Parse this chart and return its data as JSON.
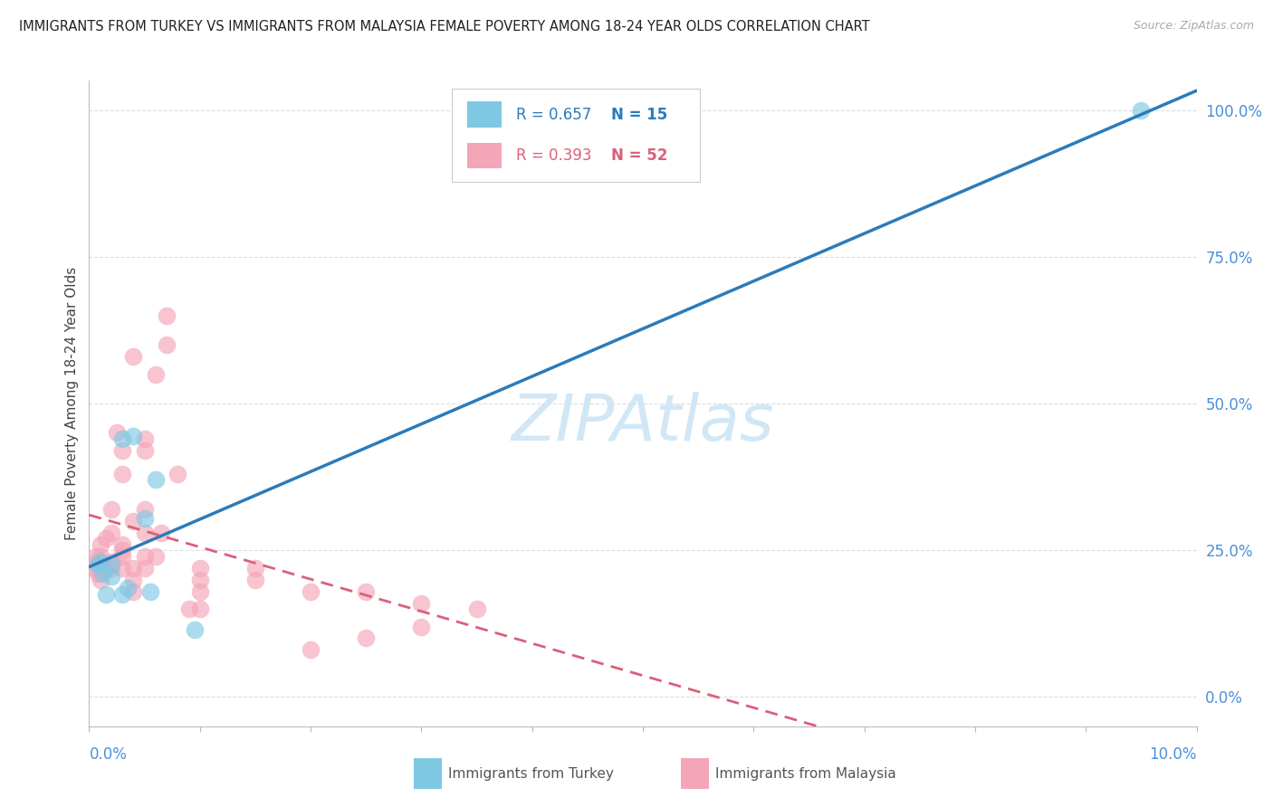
{
  "title": "IMMIGRANTS FROM TURKEY VS IMMIGRANTS FROM MALAYSIA FEMALE POVERTY AMONG 18-24 YEAR OLDS CORRELATION CHART",
  "source": "Source: ZipAtlas.com",
  "ylabel": "Female Poverty Among 18-24 Year Olds",
  "xlim": [
    0.0,
    0.1
  ],
  "ylim": [
    -0.05,
    1.05
  ],
  "right_yticks": [
    0.0,
    0.25,
    0.5,
    0.75,
    1.0
  ],
  "right_yticklabels": [
    "0.0%",
    "25.0%",
    "50.0%",
    "75.0%",
    "100.0%"
  ],
  "turkey_color": "#7ec8e3",
  "malaysia_color": "#f4a5b8",
  "turkey_line_color": "#2b7bba",
  "malaysia_line_color": "#d9607a",
  "watermark": "ZIPAtlas",
  "watermark_color": "#cce5f5",
  "background_color": "#ffffff",
  "grid_color": "#dddddd",
  "turkey_R": "0.657",
  "turkey_N": "15",
  "malaysia_R": "0.393",
  "malaysia_N": "52",
  "turkey_x": [
    0.0008,
    0.001,
    0.0012,
    0.0015,
    0.002,
    0.002,
    0.003,
    0.003,
    0.0035,
    0.004,
    0.005,
    0.0055,
    0.006,
    0.0095,
    0.095
  ],
  "turkey_y": [
    0.225,
    0.23,
    0.21,
    0.175,
    0.205,
    0.225,
    0.175,
    0.44,
    0.185,
    0.445,
    0.305,
    0.18,
    0.37,
    0.115,
    1.0
  ],
  "malaysia_x": [
    0.0005,
    0.0006,
    0.0007,
    0.0008,
    0.001,
    0.001,
    0.001,
    0.001,
    0.0015,
    0.0015,
    0.002,
    0.002,
    0.002,
    0.002,
    0.0025,
    0.003,
    0.003,
    0.003,
    0.003,
    0.003,
    0.003,
    0.004,
    0.004,
    0.004,
    0.004,
    0.004,
    0.005,
    0.005,
    0.005,
    0.005,
    0.005,
    0.005,
    0.006,
    0.006,
    0.0065,
    0.007,
    0.007,
    0.008,
    0.009,
    0.01,
    0.01,
    0.01,
    0.01,
    0.015,
    0.015,
    0.02,
    0.02,
    0.025,
    0.025,
    0.03,
    0.03,
    0.035
  ],
  "malaysia_y": [
    0.22,
    0.24,
    0.23,
    0.21,
    0.24,
    0.23,
    0.26,
    0.2,
    0.22,
    0.27,
    0.23,
    0.22,
    0.28,
    0.32,
    0.45,
    0.22,
    0.24,
    0.26,
    0.38,
    0.42,
    0.25,
    0.18,
    0.2,
    0.22,
    0.3,
    0.58,
    0.28,
    0.24,
    0.22,
    0.42,
    0.44,
    0.32,
    0.24,
    0.55,
    0.28,
    0.65,
    0.6,
    0.38,
    0.15,
    0.2,
    0.22,
    0.18,
    0.15,
    0.2,
    0.22,
    0.08,
    0.18,
    0.1,
    0.18,
    0.12,
    0.16,
    0.15
  ]
}
